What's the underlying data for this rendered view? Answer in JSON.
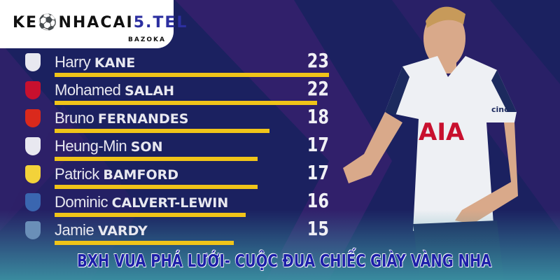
{
  "logo": {
    "main_prefix": "KE",
    "main_middle": "NHACAI",
    "main_accent": "5.TEL",
    "sub": "BAZOKA"
  },
  "colors": {
    "background": "#1b2160",
    "bar": "#f0c419",
    "title_fill": "#1d1fa8",
    "title_outline": "#ffffff"
  },
  "scorers": [
    {
      "first": "Harry",
      "last": "KANE",
      "goals": 23,
      "club_icon": "tottenham-crest-icon",
      "club_color": "#e8e8f0"
    },
    {
      "first": "Mohamed",
      "last": "SALAH",
      "goals": 22,
      "club_icon": "liverpool-crest-icon",
      "club_color": "#c8102e"
    },
    {
      "first": "Bruno",
      "last": "FERNANDES",
      "goals": 18,
      "club_icon": "manchester-united-crest-icon",
      "club_color": "#da291c"
    },
    {
      "first": "Heung-Min",
      "last": "SON",
      "goals": 17,
      "club_icon": "tottenham-crest-icon",
      "club_color": "#e8e8f0"
    },
    {
      "first": "Patrick",
      "last": "BAMFORD",
      "goals": 17,
      "club_icon": "leeds-crest-icon",
      "club_color": "#f3d23a"
    },
    {
      "first": "Dominic",
      "last": "CALVERT-LEWIN",
      "goals": 16,
      "club_icon": "everton-crest-icon",
      "club_color": "#3a66b0"
    },
    {
      "first": "Jamie",
      "last": "VARDY",
      "goals": 15,
      "club_icon": "leicester-crest-icon",
      "club_color": "#6a8fb8"
    }
  ],
  "max_goals": 23,
  "player": {
    "sponsor": "AIA",
    "sleeve_sponsor": "cinch"
  },
  "title": "BXH VUA PHÁ LƯỚI- CUỘC ĐUA CHIẾC GIÀY VÀNG NHA"
}
